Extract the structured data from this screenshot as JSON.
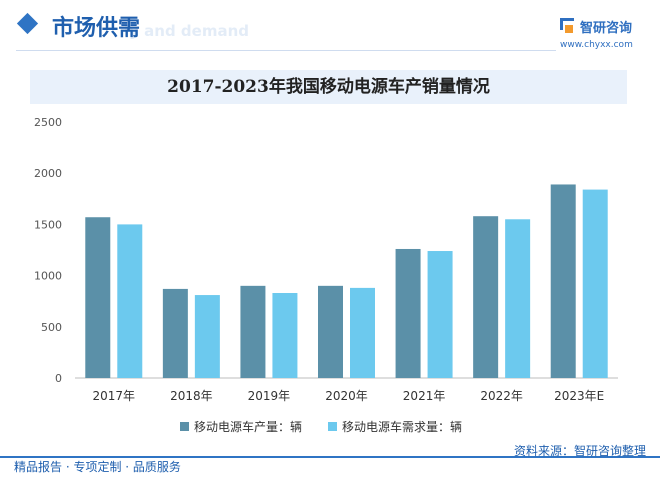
{
  "header": {
    "section_title": "市场供需",
    "section_sub": "ly and demand",
    "brand_name": "智研咨询",
    "brand_url": "www.chyxx.com"
  },
  "footer": {
    "left_text": "精品报告 · 专项定制 · 品质服务",
    "source_text": "资料来源：智研咨询整理"
  },
  "colors": {
    "production": "#5b90a8",
    "demand": "#6cc9ee",
    "accent": "#2f74c4"
  },
  "chart_data": {
    "type": "bar",
    "title": "2017-2023年我国移动电源车产销量情况",
    "categories": [
      "2017年",
      "2018年",
      "2019年",
      "2020年",
      "2021年",
      "2022年",
      "2023年E"
    ],
    "series": [
      {
        "name": "移动电源车产量：辆",
        "values": [
          1570,
          870,
          900,
          900,
          1260,
          1580,
          1890
        ]
      },
      {
        "name": "移动电源车需求量：辆",
        "values": [
          1500,
          810,
          830,
          880,
          1240,
          1550,
          1840
        ]
      }
    ],
    "yticks": [
      0,
      500,
      1000,
      1500,
      2000,
      2500
    ],
    "ylim": [
      0,
      2500
    ],
    "grid": false,
    "legend": "bottom"
  }
}
